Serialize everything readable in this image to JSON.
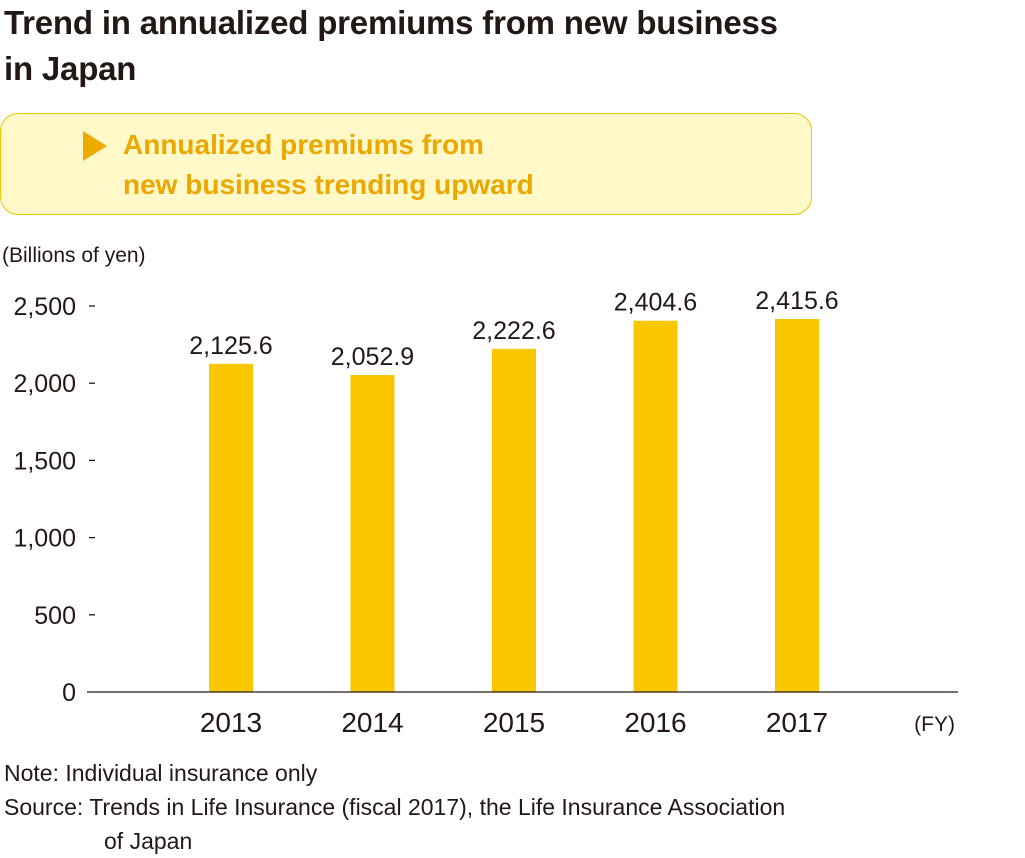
{
  "header": {
    "title_line1": "Trend in annualized premiums from new business",
    "title_line2": "in Japan"
  },
  "callout": {
    "line1": "Annualized premiums from",
    "line2": "new business trending upward",
    "icon": "triangle-right-icon"
  },
  "notes": {
    "note": "Note: Individual insurance only",
    "source_line1": "Source: Trends in Life Insurance (fiscal 2017), the Life Insurance Association",
    "source_line2": "of Japan"
  },
  "colors": {
    "bar": "#fac600",
    "callout_text": "#eba800",
    "callout_bg": "#fff8c8",
    "axis": "#231815"
  },
  "chart_data": {
    "type": "bar",
    "title": "Trend in annualized premiums from new business in Japan",
    "categories": [
      "2013",
      "2014",
      "2015",
      "2016",
      "2017"
    ],
    "values": [
      2125.6,
      2052.9,
      2222.6,
      2404.6,
      2415.6
    ],
    "value_labels": [
      "2,125.6",
      "2,052.9",
      "2,222.6",
      "2,404.6",
      "2,415.6"
    ],
    "ylabel": "(Billions of yen)",
    "xlabel": "(FY)",
    "ylim": [
      0,
      2500
    ],
    "yticks": [
      0,
      500,
      1000,
      1500,
      2000,
      2500
    ],
    "ytick_labels": [
      "0",
      "500",
      "1,000",
      "1,500",
      "2,000",
      "2,500"
    ],
    "grid": false,
    "legend": "none"
  }
}
